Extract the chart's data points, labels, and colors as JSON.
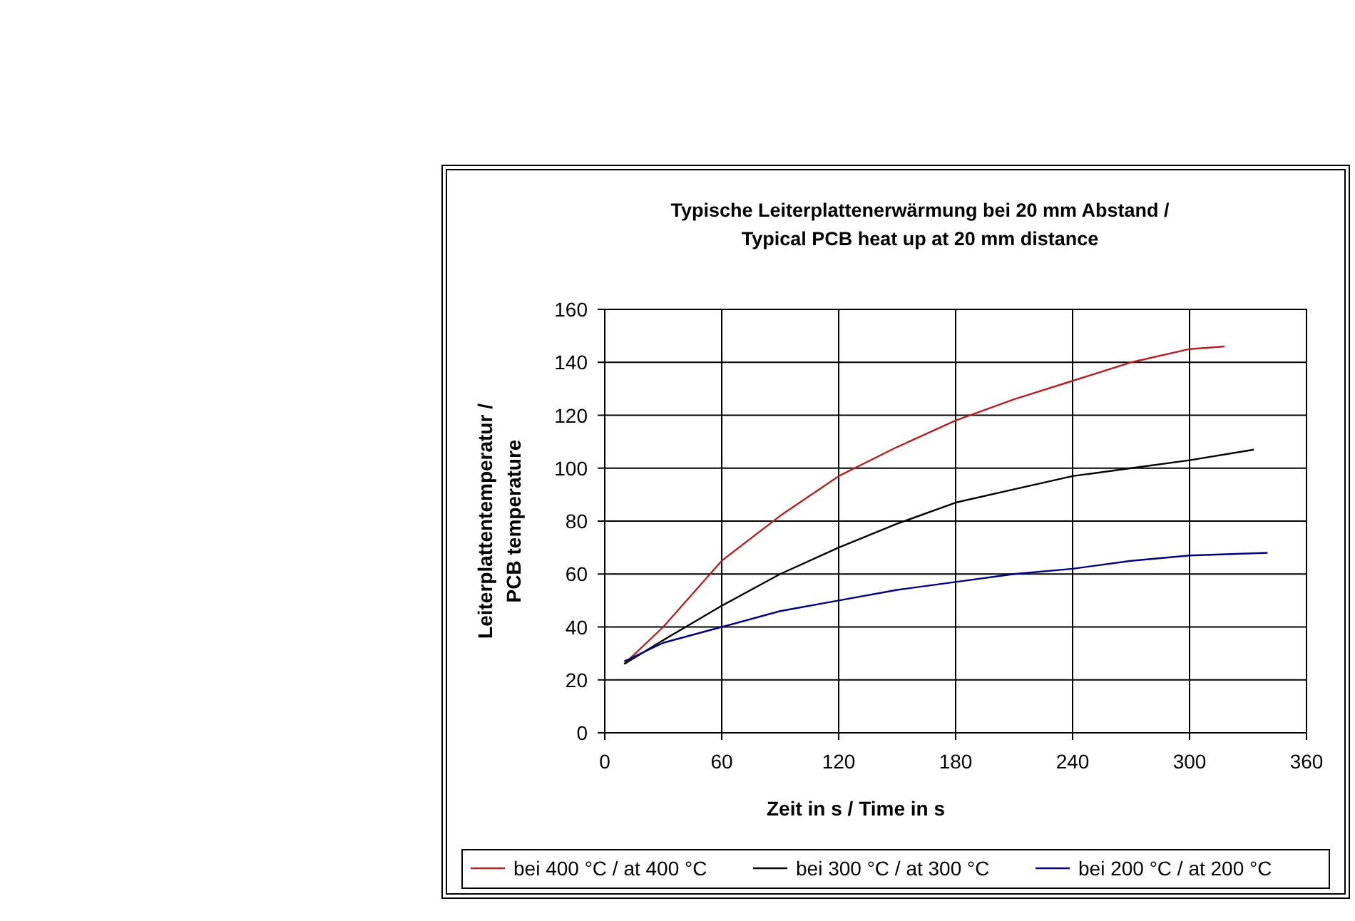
{
  "chart_data": {
    "type": "line",
    "title": "Typische Leiterplattenerwärmung bei 20 mm Abstand /\nTypical PCB heat up at 20 mm distance",
    "xlabel": "Zeit in s / Time in s",
    "ylabel": "Leiterplattentemperatur /\nPCB temperature",
    "xlim": [
      0,
      360
    ],
    "xticks": [
      0,
      60,
      120,
      180,
      240,
      300,
      360
    ],
    "ylim": [
      0,
      160
    ],
    "yticks": [
      0,
      20,
      40,
      60,
      80,
      100,
      120,
      140,
      160
    ],
    "grid": true,
    "legend": "bottom",
    "marker": "none",
    "line_style": "solid",
    "series": [
      {
        "name": "bei 400 °C / at 400 °C",
        "color": "#b22222",
        "x": [
          10,
          30,
          60,
          90,
          120,
          150,
          180,
          210,
          240,
          270,
          300,
          318
        ],
        "values": [
          26,
          40,
          65,
          82,
          97,
          108,
          118,
          126,
          133,
          140,
          145,
          146
        ]
      },
      {
        "name": "bei 300 °C / at 300 °C",
        "color": "#000000",
        "x": [
          10,
          30,
          60,
          90,
          120,
          150,
          180,
          210,
          240,
          270,
          300,
          333
        ],
        "values": [
          26,
          35,
          48,
          60,
          70,
          79,
          87,
          92,
          97,
          100,
          103,
          107
        ]
      },
      {
        "name": "bei 200 °C / at 200 °C",
        "color": "#000080",
        "x": [
          10,
          30,
          60,
          90,
          120,
          150,
          180,
          210,
          240,
          270,
          300,
          340
        ],
        "values": [
          27,
          34,
          40,
          46,
          50,
          54,
          57,
          60,
          62,
          65,
          67,
          68
        ]
      }
    ]
  }
}
